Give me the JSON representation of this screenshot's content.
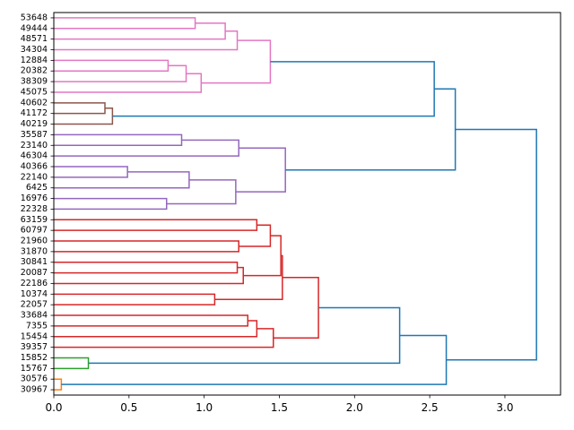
{
  "chart_data": {
    "type": "dendrogram",
    "orientation": "left-to-right",
    "title": "",
    "xlabel": "",
    "ylabel": "",
    "xlim": [
      0,
      3.37
    ],
    "xticks": [
      0.0,
      0.5,
      1.0,
      1.5,
      2.0,
      2.5,
      3.0
    ],
    "xtick_labels": [
      "0.0",
      "0.5",
      "1.0",
      "1.5",
      "2.0",
      "2.5",
      "3.0"
    ],
    "grid": false,
    "legend": "none",
    "colors": {
      "pink": "#e377c2",
      "brown": "#8c564b",
      "purple": "#9467bd",
      "red": "#d62728",
      "green": "#2ca02c",
      "orange": "#ff7f0e",
      "above_threshold": "#1f77b4"
    },
    "leaves": [
      "53648",
      "49444",
      "48571",
      "34304",
      "12884",
      "20382",
      "38309",
      "45075",
      "40602",
      "41172",
      "40219",
      "35587",
      "23140",
      "46304",
      "40366",
      "22140",
      "6425",
      "16976",
      "22328",
      "63159",
      "60797",
      "21960",
      "31870",
      "30841",
      "20087",
      "22186",
      "10374",
      "22057",
      "33684",
      "7355",
      "15454",
      "39357",
      "15852",
      "15767",
      "30576",
      "30967"
    ],
    "merges": [
      {
        "left": "53648",
        "right": "49444",
        "height": 0.94,
        "color": "pink"
      },
      {
        "left": "m0",
        "right": "48571",
        "height": 1.14,
        "color": "pink"
      },
      {
        "left": "m1",
        "right": "34304",
        "height": 1.22,
        "color": "pink"
      },
      {
        "left": "12884",
        "right": "20382",
        "height": 0.76,
        "color": "pink"
      },
      {
        "left": "m3",
        "right": "38309",
        "height": 0.88,
        "color": "pink"
      },
      {
        "left": "m4",
        "right": "45075",
        "height": 0.98,
        "color": "pink"
      },
      {
        "left": "m2",
        "right": "m5",
        "height": 1.44,
        "color": "pink"
      },
      {
        "left": "40602",
        "right": "41172",
        "height": 0.34,
        "color": "brown"
      },
      {
        "left": "m7",
        "right": "40219",
        "height": 0.39,
        "color": "brown"
      },
      {
        "left": "m6",
        "right": "m8",
        "height": 2.53,
        "color": "above_threshold"
      },
      {
        "left": "35587",
        "right": "23140",
        "height": 0.85,
        "color": "purple"
      },
      {
        "left": "m10",
        "right": "46304",
        "height": 1.23,
        "color": "purple"
      },
      {
        "left": "40366",
        "right": "22140",
        "height": 0.49,
        "color": "purple"
      },
      {
        "left": "m12",
        "right": "6425",
        "height": 0.9,
        "color": "purple"
      },
      {
        "left": "16976",
        "right": "22328",
        "height": 0.75,
        "color": "purple"
      },
      {
        "left": "m13",
        "right": "m14",
        "height": 1.21,
        "color": "purple"
      },
      {
        "left": "m11",
        "right": "m15",
        "height": 1.54,
        "color": "purple"
      },
      {
        "left": "m9",
        "right": "m16",
        "height": 2.67,
        "color": "above_threshold"
      },
      {
        "left": "63159",
        "right": "60797",
        "height": 1.35,
        "color": "red"
      },
      {
        "left": "21960",
        "right": "31870",
        "height": 1.23,
        "color": "red"
      },
      {
        "left": "m18",
        "right": "m19",
        "height": 1.44,
        "color": "red"
      },
      {
        "left": "30841",
        "right": "20087",
        "height": 1.22,
        "color": "red"
      },
      {
        "left": "m21",
        "right": "22186",
        "height": 1.26,
        "color": "red"
      },
      {
        "left": "m20",
        "right": "m22",
        "height": 1.51,
        "color": "red"
      },
      {
        "left": "10374",
        "right": "22057",
        "height": 1.07,
        "color": "red"
      },
      {
        "left": "m23",
        "right": "m24",
        "height": 1.52,
        "color": "red"
      },
      {
        "left": "33684",
        "right": "7355",
        "height": 1.29,
        "color": "red"
      },
      {
        "left": "m26",
        "right": "15454",
        "height": 1.35,
        "color": "red"
      },
      {
        "left": "m27",
        "right": "39357",
        "height": 1.46,
        "color": "red"
      },
      {
        "left": "m25",
        "right": "m28",
        "height": 1.76,
        "color": "red"
      },
      {
        "left": "15852",
        "right": "15767",
        "height": 0.23,
        "color": "green"
      },
      {
        "left": "m29",
        "right": "m30",
        "height": 2.3,
        "color": "above_threshold"
      },
      {
        "left": "30576",
        "right": "30967",
        "height": 0.05,
        "color": "orange"
      },
      {
        "left": "m31",
        "right": "m32",
        "height": 2.61,
        "color": "above_threshold"
      },
      {
        "left": "m17",
        "right": "m33",
        "height": 3.21,
        "color": "above_threshold"
      }
    ]
  }
}
